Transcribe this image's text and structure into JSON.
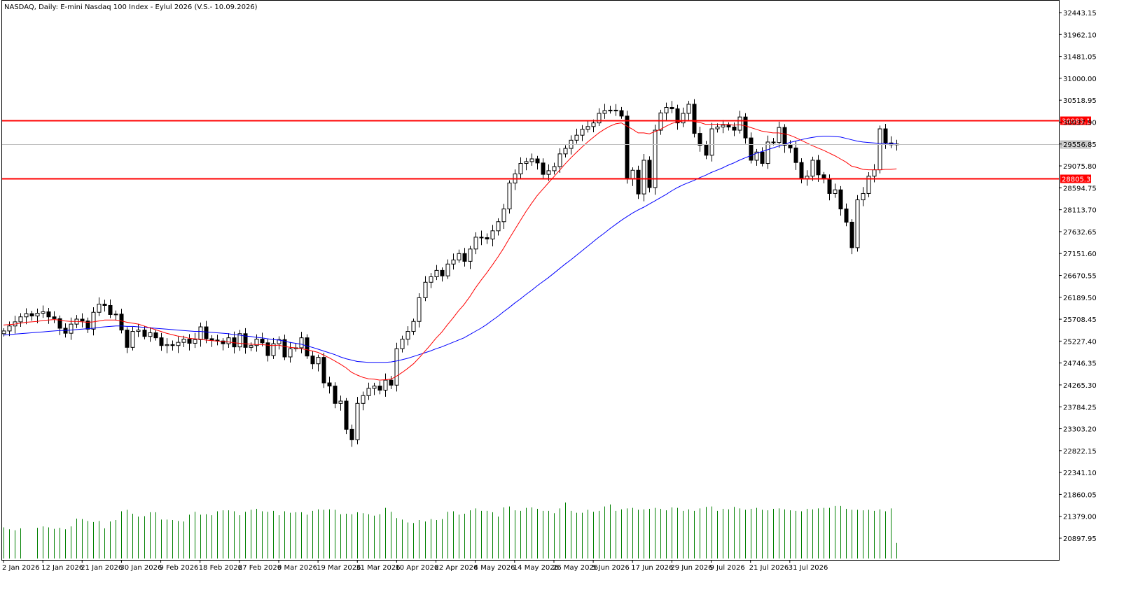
{
  "chart_data": {
    "type": "candlestick",
    "title": "NASDAQ, Daily:  E-mini Nasdaq 100 Index - Eylul 2026 (V.S.- 10.09.2026)",
    "y_ticks": [
      "32443.15",
      "31962.10",
      "31481.05",
      "31000.00",
      "30518.95",
      "30037.90",
      "29556.85",
      "29075.80",
      "28594.75",
      "28113.70",
      "27632.65",
      "27151.60",
      "26670.55",
      "26189.50",
      "25708.45",
      "25227.40",
      "24746.35",
      "24265.30",
      "23784.25",
      "23303.20",
      "22822.15",
      "22341.10",
      "21860.05",
      "21379.00",
      "20897.95"
    ],
    "y_tick_values": [
      32443.15,
      31962.1,
      31481.05,
      31000.0,
      30518.95,
      30037.9,
      29556.85,
      29075.8,
      28594.75,
      28113.7,
      27632.65,
      27151.6,
      26670.55,
      26189.5,
      25708.45,
      25227.4,
      24746.35,
      24265.3,
      23784.25,
      23303.2,
      22822.15,
      22341.1,
      21860.05,
      21379.0,
      20897.95
    ],
    "x_ticks": [
      "2 Jan 2026",
      "12 Jan 2026",
      "21 Jan 2026",
      "30 Jan 2026",
      "9 Feb 2026",
      "18 Feb 2026",
      "27 Feb 2026",
      "9 Mar 2026",
      "19 Mar 2026",
      "31 Mar 2026",
      "10 Apr 2026",
      "22 Apr 2026",
      "4 May 2026",
      "14 May 2026",
      "26 May 2026",
      "5 Jun 2026",
      "17 Jun 2026",
      "29 Jun 2026",
      "9 Jul 2026",
      "21 Jul 2026",
      "31 Jul 2026"
    ],
    "x_tick_bar_index": [
      0,
      7,
      14,
      21,
      28,
      35,
      42,
      49,
      56,
      63,
      70,
      77,
      84,
      91,
      98,
      105,
      112,
      119,
      126,
      133,
      140
    ],
    "horizontal_lines": [
      {
        "value": 30083.18,
        "label": "30083.18",
        "color": "#ff0000"
      },
      {
        "value": 28805.36,
        "label": "28805.36",
        "color": "#ff0000"
      }
    ],
    "current_price": {
      "value": 29556.25,
      "label": "29556.25",
      "color": "#c0c0c0"
    },
    "ma_colors": {
      "fast": "#ff0000",
      "slow": "#0000ff"
    },
    "volume_color": "#008000",
    "colors": {
      "bull": "#ffffff",
      "bear": "#000000",
      "wick": "#000000"
    },
    "close": [
      25450,
      25560,
      25650,
      25760,
      25830,
      25780,
      25840,
      25870,
      25760,
      25720,
      25510,
      25400,
      25600,
      25710,
      25670,
      25490,
      25860,
      26040,
      26010,
      25810,
      25820,
      25470,
      25090,
      25440,
      25470,
      25330,
      25410,
      25300,
      25130,
      25150,
      25130,
      25200,
      25270,
      25180,
      25260,
      25540,
      25280,
      25250,
      25230,
      25170,
      25300,
      25100,
      25390,
      25090,
      25130,
      25270,
      25190,
      24910,
      25170,
      25260,
      24880,
      25060,
      25080,
      25300,
      24900,
      24730,
      24870,
      24310,
      24240,
      23860,
      23910,
      23290,
      23060,
      23860,
      24030,
      24190,
      24240,
      24150,
      24370,
      24260,
      25060,
      25270,
      25440,
      25660,
      26180,
      26520,
      26640,
      26780,
      26660,
      26920,
      27010,
      27150,
      26980,
      27250,
      27510,
      27500,
      27470,
      27650,
      27850,
      28130,
      28700,
      28900,
      29130,
      29170,
      29230,
      29140,
      28890,
      28970,
      29060,
      29340,
      29460,
      29640,
      29750,
      29880,
      29940,
      30020,
      30230,
      30290,
      30300,
      30290,
      30170,
      28800,
      28980,
      28460,
      29200,
      28600,
      29860,
      30240,
      30360,
      30330,
      30020,
      30230,
      30430,
      29790,
      29530,
      29310,
      29890,
      29930,
      29970,
      29930,
      29860,
      30150,
      29690,
      29200,
      29380,
      29130,
      29600,
      29590,
      29920,
      29530,
      29470,
      29150,
      28800,
      28850,
      29200,
      28880,
      28790,
      28470,
      28550,
      28130,
      27840,
      27280,
      28330,
      28470,
      28850,
      28990,
      29890,
      29580,
      29540,
      29556
    ],
    "ohlc_offset_note": "",
    "ma_fast": [
      25580,
      25590,
      25600,
      25620,
      25640,
      25650,
      25660,
      25680,
      25690,
      25700,
      25690,
      25670,
      25660,
      25660,
      25650,
      25640,
      25650,
      25670,
      25690,
      25690,
      25690,
      25670,
      25640,
      25620,
      25600,
      25560,
      25520,
      25480,
      25440,
      25400,
      25370,
      25340,
      25320,
      25290,
      25280,
      25270,
      25250,
      25240,
      25230,
      25220,
      25210,
      25190,
      25180,
      25170,
      25160,
      25150,
      25150,
      25140,
      25130,
      25140,
      25110,
      25090,
      25080,
      25060,
      25040,
      25010,
      24980,
      24920,
      24860,
      24790,
      24720,
      24640,
      24540,
      24480,
      24430,
      24400,
      24390,
      24370,
      24380,
      24390,
      24460,
      24540,
      24630,
      24730,
      24860,
      25000,
      25140,
      25290,
      25420,
      25580,
      25730,
      25890,
      26030,
      26200,
      26390,
      26560,
      26720,
      26890,
      27070,
      27260,
      27470,
      27670,
      27870,
      28070,
      28250,
      28420,
      28560,
      28700,
      28840,
      28980,
      29120,
      29250,
      29370,
      29490,
      29600,
      29700,
      29800,
      29880,
      29950,
      30000,
      30020,
      29950,
      29880,
      29800,
      29800,
      29780,
      29830,
      29880,
      29950,
      30010,
      30040,
      30060,
      30080,
      30050,
      30030,
      29990,
      29990,
      29990,
      29990,
      29990,
      29970,
      29980,
      29960,
      29920,
      29880,
      29840,
      29820,
      29800,
      29800,
      29780,
      29750,
      29700,
      29640,
      29580,
      29520,
      29470,
      29420,
      29360,
      29300,
      29230,
      29160,
      29070,
      29040,
      29000,
      28990,
      28990,
      28990,
      29000,
      29000,
      29010
    ],
    "ma_slow": [
      25360,
      25370,
      25380,
      25390,
      25400,
      25410,
      25420,
      25430,
      25440,
      25450,
      25460,
      25460,
      25470,
      25480,
      25490,
      25500,
      25510,
      25530,
      25540,
      25550,
      25560,
      25560,
      25550,
      25550,
      25540,
      25530,
      25520,
      25510,
      25500,
      25490,
      25480,
      25470,
      25460,
      25450,
      25440,
      25440,
      25430,
      25420,
      25410,
      25400,
      25390,
      25370,
      25360,
      25340,
      25330,
      25310,
      25300,
      25280,
      25260,
      25250,
      25230,
      25200,
      25180,
      25160,
      25120,
      25090,
      25050,
      25010,
      24970,
      24930,
      24880,
      24840,
      24810,
      24780,
      24770,
      24760,
      24760,
      24760,
      24760,
      24770,
      24790,
      24820,
      24850,
      24890,
      24930,
      24970,
      25010,
      25060,
      25100,
      25150,
      25200,
      25250,
      25300,
      25370,
      25440,
      25510,
      25590,
      25680,
      25770,
      25870,
      25960,
      26060,
      26150,
      26250,
      26340,
      26440,
      26530,
      26620,
      26720,
      26820,
      26920,
      27010,
      27110,
      27210,
      27310,
      27410,
      27510,
      27600,
      27700,
      27790,
      27880,
      27960,
      28040,
      28110,
      28170,
      28240,
      28310,
      28380,
      28450,
      28530,
      28600,
      28660,
      28710,
      28760,
      28820,
      28870,
      28930,
      28980,
      29030,
      29090,
      29140,
      29200,
      29250,
      29300,
      29350,
      29390,
      29430,
      29470,
      29510,
      29550,
      29590,
      29620,
      29650,
      29680,
      29700,
      29720,
      29730,
      29730,
      29720,
      29710,
      29680,
      29650,
      29620,
      29600,
      29590,
      29580,
      29570,
      29570,
      29560,
      29560
    ],
    "volume": [
      64,
      60,
      58,
      62,
      0,
      0,
      63,
      66,
      64,
      61,
      63,
      60,
      66,
      82,
      81,
      77,
      75,
      77,
      62,
      76,
      79,
      97,
      100,
      92,
      86,
      87,
      95,
      95,
      80,
      80,
      79,
      77,
      76,
      90,
      96,
      90,
      91,
      89,
      97,
      99,
      99,
      97,
      89,
      96,
      100,
      102,
      97,
      96,
      98,
      89,
      97,
      94,
      95,
      95,
      90,
      98,
      101,
      100,
      101,
      100,
      91,
      92,
      91,
      95,
      93,
      91,
      88,
      91,
      104,
      96,
      83,
      80,
      74,
      73,
      79,
      76,
      81,
      79,
      81,
      96,
      97,
      90,
      92,
      99,
      103,
      98,
      98,
      95,
      86,
      105,
      107,
      99,
      98,
      104,
      105,
      102,
      98,
      98,
      93,
      103,
      115,
      98,
      94,
      94,
      100,
      96,
      98,
      107,
      111,
      98,
      101,
      103,
      104,
      100,
      101,
      102,
      104,
      102,
      99,
      105,
      104,
      98,
      101,
      98,
      103,
      106,
      107,
      98,
      102,
      101,
      106,
      103,
      100,
      102,
      104,
      100,
      99,
      102,
      103,
      101,
      99,
      98,
      97,
      102,
      101,
      103,
      104,
      104,
      108,
      108,
      102,
      100,
      100,
      99,
      100,
      98,
      101,
      97,
      103,
      32
    ],
    "high_low_range": {
      "min": 20660,
      "max": 32600
    }
  }
}
